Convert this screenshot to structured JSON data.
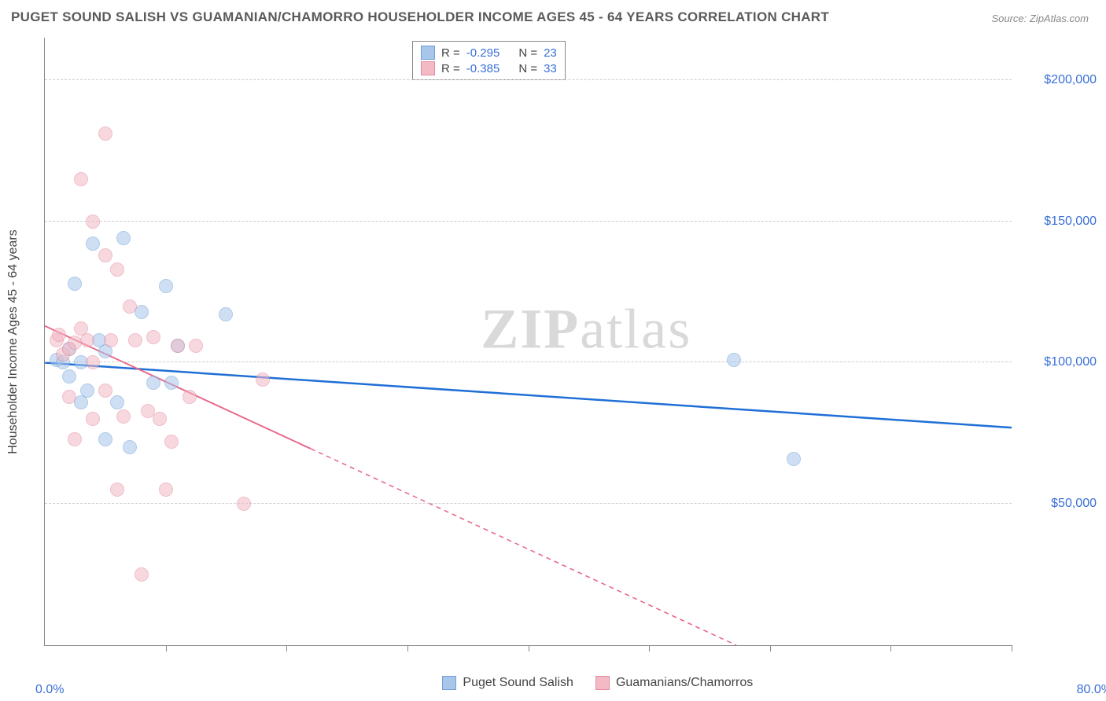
{
  "title": "PUGET SOUND SALISH VS GUAMANIAN/CHAMORRO HOUSEHOLDER INCOME AGES 45 - 64 YEARS CORRELATION CHART",
  "source": "Source: ZipAtlas.com",
  "watermark_bold": "ZIP",
  "watermark_rest": "atlas",
  "y_axis_label": "Householder Income Ages 45 - 64 years",
  "chart": {
    "type": "scatter",
    "xlim": [
      0,
      80
    ],
    "ylim": [
      0,
      215000
    ],
    "x_min_label": "0.0%",
    "x_max_label": "80.0%",
    "x_ticks": [
      10,
      20,
      30,
      40,
      50,
      60,
      70,
      80
    ],
    "y_gridlines": [
      50000,
      100000,
      150000,
      200000
    ],
    "y_tick_labels": [
      "$50,000",
      "$100,000",
      "$150,000",
      "$200,000"
    ],
    "background_color": "#ffffff",
    "grid_color": "#cccccc",
    "axis_color": "#888888",
    "marker_radius": 9,
    "marker_opacity": 0.55,
    "series": [
      {
        "name": "Puget Sound Salish",
        "color_fill": "#a8c6ea",
        "color_stroke": "#6fa0d9",
        "R": "-0.295",
        "N": "23",
        "trend": {
          "y_at_x0": 100000,
          "y_at_x80": 77000,
          "stroke": "#1f6fd6",
          "width": 2.5,
          "dashed_after_x": 80
        },
        "points": [
          {
            "x": 1.0,
            "y": 101000
          },
          {
            "x": 1.5,
            "y": 100000
          },
          {
            "x": 2.0,
            "y": 105000
          },
          {
            "x": 2.5,
            "y": 128000
          },
          {
            "x": 3.5,
            "y": 90000
          },
          {
            "x": 3.0,
            "y": 86000
          },
          {
            "x": 4.0,
            "y": 142000
          },
          {
            "x": 5.0,
            "y": 104000
          },
          {
            "x": 5.0,
            "y": 73000
          },
          {
            "x": 6.0,
            "y": 86000
          },
          {
            "x": 6.5,
            "y": 144000
          },
          {
            "x": 7.0,
            "y": 70000
          },
          {
            "x": 8.0,
            "y": 118000
          },
          {
            "x": 9.0,
            "y": 93000
          },
          {
            "x": 10.0,
            "y": 127000
          },
          {
            "x": 10.5,
            "y": 93000
          },
          {
            "x": 11.0,
            "y": 106000
          },
          {
            "x": 15.0,
            "y": 117000
          },
          {
            "x": 57.0,
            "y": 101000
          },
          {
            "x": 62.0,
            "y": 66000
          },
          {
            "x": 2.0,
            "y": 95000
          },
          {
            "x": 3.0,
            "y": 100000
          },
          {
            "x": 4.5,
            "y": 108000
          }
        ]
      },
      {
        "name": "Guamanians/Chamorros",
        "color_fill": "#f3b9c5",
        "color_stroke": "#e28ba0",
        "R": "-0.385",
        "N": "33",
        "trend": {
          "y_at_x0": 113000,
          "y_at_x80": -45000,
          "stroke": "#e86a8a",
          "width": 2,
          "dashed_after_x": 22
        },
        "points": [
          {
            "x": 1.0,
            "y": 108000
          },
          {
            "x": 1.2,
            "y": 110000
          },
          {
            "x": 1.5,
            "y": 103000
          },
          {
            "x": 2.0,
            "y": 105000
          },
          {
            "x": 2.0,
            "y": 88000
          },
          {
            "x": 2.5,
            "y": 73000
          },
          {
            "x": 3.0,
            "y": 165000
          },
          {
            "x": 3.5,
            "y": 108000
          },
          {
            "x": 4.0,
            "y": 80000
          },
          {
            "x": 4.0,
            "y": 150000
          },
          {
            "x": 5.0,
            "y": 181000
          },
          {
            "x": 5.0,
            "y": 138000
          },
          {
            "x": 5.0,
            "y": 90000
          },
          {
            "x": 5.5,
            "y": 108000
          },
          {
            "x": 6.0,
            "y": 133000
          },
          {
            "x": 6.0,
            "y": 55000
          },
          {
            "x": 6.5,
            "y": 81000
          },
          {
            "x": 7.0,
            "y": 120000
          },
          {
            "x": 7.5,
            "y": 108000
          },
          {
            "x": 8.0,
            "y": 25000
          },
          {
            "x": 8.5,
            "y": 83000
          },
          {
            "x": 9.0,
            "y": 109000
          },
          {
            "x": 9.5,
            "y": 80000
          },
          {
            "x": 10.0,
            "y": 55000
          },
          {
            "x": 10.5,
            "y": 72000
          },
          {
            "x": 11.0,
            "y": 106000
          },
          {
            "x": 12.0,
            "y": 88000
          },
          {
            "x": 12.5,
            "y": 106000
          },
          {
            "x": 16.5,
            "y": 50000
          },
          {
            "x": 18.0,
            "y": 94000
          },
          {
            "x": 2.5,
            "y": 107000
          },
          {
            "x": 3.0,
            "y": 112000
          },
          {
            "x": 4.0,
            "y": 100000
          }
        ]
      }
    ]
  },
  "legend": {
    "series1_label": "Puget Sound Salish",
    "series2_label": "Guamanians/Chamorros",
    "r_prefix": "R =",
    "n_prefix": "N ="
  }
}
